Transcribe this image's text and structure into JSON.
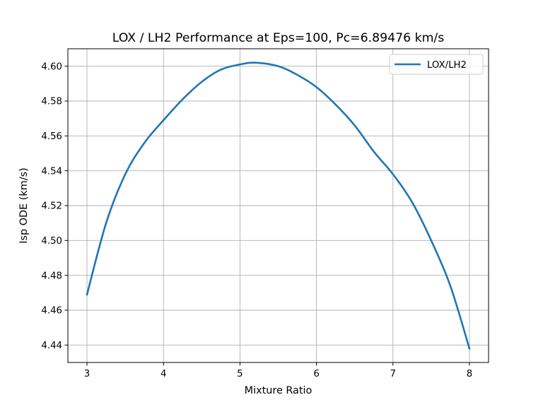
{
  "chart_data": {
    "type": "line",
    "title": "LOX / LH2 Performance at Eps=100, Pc=6.89476 km/s",
    "xlabel": "Mixture Ratio",
    "ylabel": "Isp ODE (km/s)",
    "xlim": [
      2.75,
      8.25
    ],
    "ylim": [
      4.43,
      4.61
    ],
    "xticks": [
      3,
      4,
      5,
      6,
      7,
      8
    ],
    "xtick_labels": [
      "3",
      "4",
      "5",
      "6",
      "7",
      "8"
    ],
    "yticks": [
      4.44,
      4.46,
      4.48,
      4.5,
      4.52,
      4.54,
      4.56,
      4.58,
      4.6
    ],
    "ytick_labels": [
      "4.44",
      "4.46",
      "4.48",
      "4.50",
      "4.52",
      "4.54",
      "4.56",
      "4.58",
      "4.60"
    ],
    "grid": true,
    "legend_position": "upper right",
    "series": [
      {
        "name": "LOX/LH2",
        "color": "#1f77b4",
        "x": [
          3.0,
          3.25,
          3.5,
          3.75,
          4.0,
          4.25,
          4.5,
          4.75,
          5.0,
          5.2,
          5.5,
          5.75,
          6.0,
          6.25,
          6.5,
          6.75,
          7.0,
          7.25,
          7.5,
          7.75,
          8.0
        ],
        "y": [
          4.469,
          4.51,
          4.538,
          4.556,
          4.569,
          4.581,
          4.591,
          4.598,
          4.601,
          4.602,
          4.6,
          4.595,
          4.588,
          4.578,
          4.566,
          4.551,
          4.538,
          4.522,
          4.5,
          4.474,
          4.438
        ]
      }
    ]
  }
}
